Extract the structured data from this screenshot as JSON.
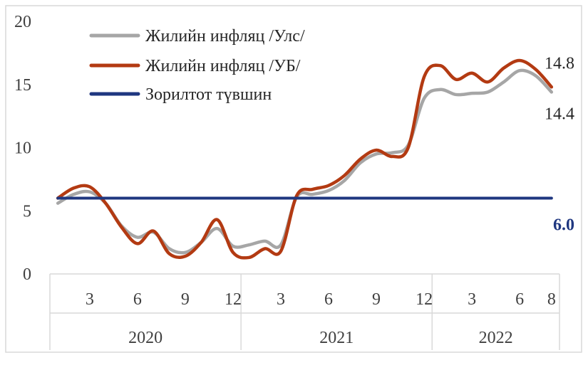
{
  "chart_data": {
    "type": "line",
    "yticks": [
      "0",
      "5",
      "10",
      "15",
      "20"
    ],
    "ylim": [
      0,
      20
    ],
    "x_tick_labels": [
      "3",
      "6",
      "9",
      "12",
      "3",
      "6",
      "9",
      "12",
      "3",
      "6",
      "8"
    ],
    "x_tick_months": [
      3,
      6,
      9,
      12,
      15,
      18,
      21,
      24,
      27,
      30,
      32
    ],
    "years": [
      {
        "label": "2020",
        "start": 0.5,
        "end": 12.5
      },
      {
        "label": "2021",
        "start": 12.5,
        "end": 24.5
      },
      {
        "label": "2022",
        "start": 24.5,
        "end": 32.5
      }
    ],
    "legend_position": "top-left",
    "grid": false,
    "series": [
      {
        "name": "Жилийн инфляц /Улс/",
        "color": "#a6a6a6",
        "x": [
          1,
          2,
          3,
          4,
          5,
          6,
          7,
          8,
          9,
          10,
          11,
          12,
          13,
          14,
          15,
          16,
          17,
          18,
          19,
          20,
          21,
          22,
          23,
          24,
          25,
          26,
          27,
          28,
          29,
          30,
          31,
          32
        ],
        "values": [
          5.6,
          6.3,
          6.5,
          5.6,
          3.8,
          2.9,
          3.3,
          2.0,
          1.7,
          2.5,
          3.6,
          2.2,
          2.3,
          2.6,
          2.3,
          6.1,
          6.3,
          6.6,
          7.4,
          8.8,
          9.5,
          9.6,
          10.2,
          13.9,
          14.6,
          14.2,
          14.3,
          14.4,
          15.2,
          16.1,
          15.7,
          14.4
        ]
      },
      {
        "name": "Жилийн инфляц /УБ/",
        "color": "#b33a12",
        "x": [
          1,
          2,
          3,
          4,
          5,
          6,
          7,
          8,
          9,
          10,
          11,
          12,
          13,
          14,
          15,
          16,
          17,
          18,
          19,
          20,
          21,
          22,
          23,
          24,
          25,
          26,
          27,
          28,
          29,
          30,
          31,
          32
        ],
        "values": [
          6.0,
          6.8,
          6.9,
          5.6,
          3.7,
          2.4,
          3.4,
          1.6,
          1.4,
          2.5,
          4.3,
          1.7,
          1.3,
          2.0,
          1.8,
          6.2,
          6.7,
          7.0,
          7.8,
          9.1,
          9.8,
          9.3,
          10.0,
          15.6,
          16.5,
          15.4,
          15.9,
          15.2,
          16.3,
          16.9,
          16.2,
          14.8
        ]
      },
      {
        "name": "Зорилтот түвшин",
        "color": "#1f3780",
        "x": [
          1,
          32
        ],
        "values": [
          6.0,
          6.0
        ]
      }
    ],
    "annotations": [
      {
        "text": "14.8",
        "series": 1,
        "point": 31,
        "color": "#262626",
        "bold": false,
        "placement": "above"
      },
      {
        "text": "14.4",
        "series": 0,
        "point": 31,
        "color": "#262626",
        "bold": false,
        "placement": "below"
      },
      {
        "text": "6.0",
        "series": 2,
        "point": 1,
        "color": "#1f3780",
        "bold": true,
        "placement": "below"
      }
    ]
  }
}
